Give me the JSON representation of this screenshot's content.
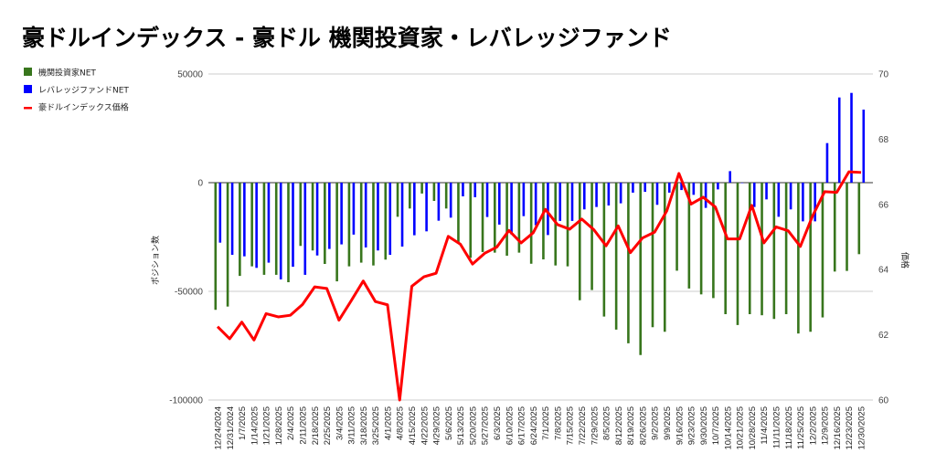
{
  "title": "豪ドルインデックス - 豪ドル 機関投資家・レバレッジファンド",
  "chart_data": {
    "type": "bar+line",
    "title": "豪ドルインデックス - 豪ドル 機関投資家・レバレッジファンド",
    "ylabel": "ポジション数",
    "y2label": "価格",
    "ylim": [
      -100000,
      50000
    ],
    "y2lim": [
      60,
      70
    ],
    "yticks": [
      "50000",
      "0",
      "-50000",
      "-100000"
    ],
    "y2ticks": [
      "70",
      "68",
      "66",
      "64",
      "62",
      "60"
    ],
    "legend_position": "top-left",
    "colors": {
      "institutional": "#38761d",
      "leveraged": "#0000ff",
      "price": "#ff0000"
    },
    "categories": [
      "12/24/2024",
      "12/31/2024",
      "1/7/2025",
      "1/14/2025",
      "1/21/2025",
      "1/28/2025",
      "2/4/2025",
      "2/11/2025",
      "2/18/2025",
      "2/25/2025",
      "3/4/2025",
      "3/11/2025",
      "3/18/2025",
      "3/25/2025",
      "4/1/2025",
      "4/8/2025",
      "4/15/2025",
      "4/22/2025",
      "4/29/2025",
      "5/6/2025",
      "5/13/2025",
      "5/20/2025",
      "5/27/2025",
      "6/3/2025",
      "6/10/2025",
      "6/17/2025",
      "6/24/2025",
      "7/1/2025",
      "7/8/2025",
      "7/15/2025",
      "7/22/2025",
      "7/29/2025",
      "8/5/2025",
      "8/12/2025",
      "8/19/2025",
      "8/26/2025",
      "9/2/2025",
      "9/9/2025",
      "9/16/2025",
      "9/23/2025",
      "9/30/2025",
      "10/7/2025",
      "10/14/2025",
      "10/21/2025",
      "10/28/2025",
      "11/4/2025",
      "11/11/2025",
      "11/18/2025",
      "11/25/2025",
      "12/2/2025",
      "12/9/2025",
      "12/16/2025",
      "12/23/2025",
      "12/30/2025"
    ],
    "series": [
      {
        "name": "機関投資家NET",
        "type": "bar",
        "axis": "left",
        "values": [
          -58500,
          -57000,
          -42900,
          -38500,
          -42400,
          -42400,
          -45800,
          -29100,
          -31200,
          -37400,
          -45400,
          -38500,
          -36800,
          -38100,
          -35400,
          -15700,
          -11900,
          -5000,
          -8400,
          -11900,
          -27300,
          -34600,
          -31900,
          -32200,
          -33600,
          -32200,
          -37300,
          -35300,
          -38100,
          -38500,
          -54100,
          -49400,
          -61600,
          -67600,
          -73900,
          -79300,
          -66500,
          -68600,
          -40500,
          -48700,
          -51400,
          -53100,
          -60500,
          -65500,
          -60500,
          -61000,
          -62700,
          -60500,
          -69400,
          -68600,
          -62000,
          -40900,
          -40600,
          -32900
        ]
      },
      {
        "name": "レバレッジファンドNET",
        "type": "bar",
        "axis": "left",
        "values": [
          -27600,
          -33200,
          -33900,
          -39200,
          -36800,
          -44500,
          -38700,
          -42400,
          -33500,
          -30500,
          -28400,
          -23900,
          -29800,
          -31200,
          -33200,
          -29400,
          -24200,
          -22400,
          -17500,
          -16100,
          -6300,
          -6700,
          -15800,
          -19300,
          -23800,
          -15400,
          -19600,
          -24100,
          -17600,
          -17600,
          -12300,
          -11200,
          -10500,
          -9500,
          -4600,
          -4200,
          -10200,
          -4600,
          -3400,
          -5600,
          -11600,
          -3100,
          5300,
          -200,
          -11200,
          -7700,
          -15700,
          -12300,
          -17800,
          -17800,
          18200,
          39200,
          41300,
          33600
        ]
      },
      {
        "name": "豪ドルインデックス価格",
        "type": "line",
        "axis": "right",
        "values": [
          62.25,
          61.88,
          62.39,
          61.84,
          62.65,
          62.55,
          62.6,
          62.93,
          63.47,
          63.42,
          62.45,
          63.04,
          63.65,
          63.02,
          62.92,
          60.0,
          63.49,
          63.78,
          63.89,
          65.02,
          64.78,
          64.17,
          64.5,
          64.69,
          65.2,
          64.82,
          65.13,
          65.85,
          65.38,
          65.24,
          65.55,
          65.22,
          64.73,
          65.34,
          64.52,
          64.97,
          65.15,
          65.8,
          66.95,
          66.01,
          66.22,
          65.92,
          64.94,
          64.94,
          65.97,
          64.82,
          65.31,
          65.19,
          64.71,
          65.64,
          66.39,
          66.37,
          67.0,
          66.98
        ]
      }
    ]
  }
}
